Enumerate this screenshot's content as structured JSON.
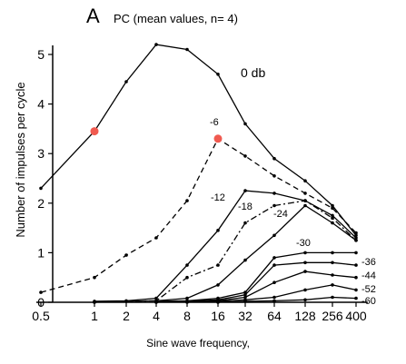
{
  "panel_label": "A",
  "title": "PC (mean values, n= 4)",
  "chart_data": {
    "type": "line",
    "x_label": "Sine wave frequency,",
    "y_label": "Number of impulses per cycle",
    "x_scale": "log2",
    "x_ticks": [
      "0.5",
      "1",
      "2",
      "4",
      "8",
      "16",
      "32",
      "64",
      "128",
      "256",
      "400"
    ],
    "y_ticks": [
      0,
      1,
      2,
      3,
      4,
      5
    ],
    "ylim": [
      0,
      5.3
    ],
    "grid": false,
    "series": [
      {
        "name": "0 db",
        "style": "solid",
        "x": [
          0.5,
          1,
          2,
          4,
          8,
          16,
          32,
          64,
          128,
          256,
          400
        ],
        "y": [
          2.3,
          3.45,
          4.45,
          5.2,
          5.1,
          4.6,
          3.6,
          2.9,
          2.45,
          1.95,
          1.35
        ]
      },
      {
        "name": "-6",
        "style": "dashed",
        "x": [
          0.5,
          1,
          2,
          4,
          8,
          16,
          32,
          64,
          128,
          256,
          400
        ],
        "y": [
          0.2,
          0.5,
          0.95,
          1.3,
          2.05,
          3.3,
          2.95,
          2.55,
          2.2,
          1.9,
          1.4
        ]
      },
      {
        "name": "-12",
        "style": "solid",
        "x": [
          1,
          2,
          4,
          8,
          16,
          32,
          64,
          128,
          256,
          400
        ],
        "y": [
          0.02,
          0.03,
          0.08,
          0.75,
          1.45,
          2.25,
          2.2,
          2.05,
          1.75,
          1.3
        ]
      },
      {
        "name": "-18",
        "style": "dashdot",
        "x": [
          1,
          2,
          4,
          8,
          16,
          32,
          64,
          128,
          256,
          400
        ],
        "y": [
          0.0,
          0.02,
          0.03,
          0.5,
          0.75,
          1.6,
          1.95,
          2.05,
          1.7,
          1.25
        ]
      },
      {
        "name": "-24",
        "style": "solid",
        "x": [
          1,
          2,
          4,
          8,
          16,
          32,
          64,
          128,
          256,
          400
        ],
        "y": [
          0.0,
          0.02,
          0.03,
          0.08,
          0.35,
          0.85,
          1.35,
          1.95,
          1.6,
          1.25
        ]
      },
      {
        "name": "-30",
        "style": "solid",
        "x": [
          4,
          8,
          16,
          32,
          64,
          128,
          256,
          400
        ],
        "y": [
          0.02,
          0.03,
          0.08,
          0.2,
          0.9,
          1.0,
          1.0,
          1.0
        ]
      },
      {
        "name": "-36",
        "style": "solid",
        "x": [
          4,
          8,
          16,
          32,
          64,
          128,
          256,
          400
        ],
        "y": [
          0.0,
          0.02,
          0.05,
          0.15,
          0.75,
          0.8,
          0.8,
          0.75
        ]
      },
      {
        "name": "-44",
        "style": "solid",
        "x": [
          4,
          8,
          16,
          32,
          64,
          128,
          256,
          400
        ],
        "y": [
          0.0,
          0.02,
          0.03,
          0.1,
          0.4,
          0.62,
          0.55,
          0.5
        ]
      },
      {
        "name": "-52",
        "style": "solid",
        "x": [
          8,
          16,
          32,
          64,
          128,
          256,
          400
        ],
        "y": [
          0.0,
          0.02,
          0.05,
          0.1,
          0.25,
          0.35,
          0.25
        ]
      },
      {
        "name": "-60",
        "style": "solid",
        "x": [
          16,
          32,
          64,
          128,
          256,
          400
        ],
        "y": [
          0.0,
          0.02,
          0.03,
          0.05,
          0.1,
          0.08
        ]
      }
    ],
    "highlighted_points": [
      {
        "x": 1,
        "y": 3.45,
        "color": "#f05a50"
      },
      {
        "x": 16,
        "y": 3.3,
        "color": "#f05a50"
      }
    ]
  }
}
